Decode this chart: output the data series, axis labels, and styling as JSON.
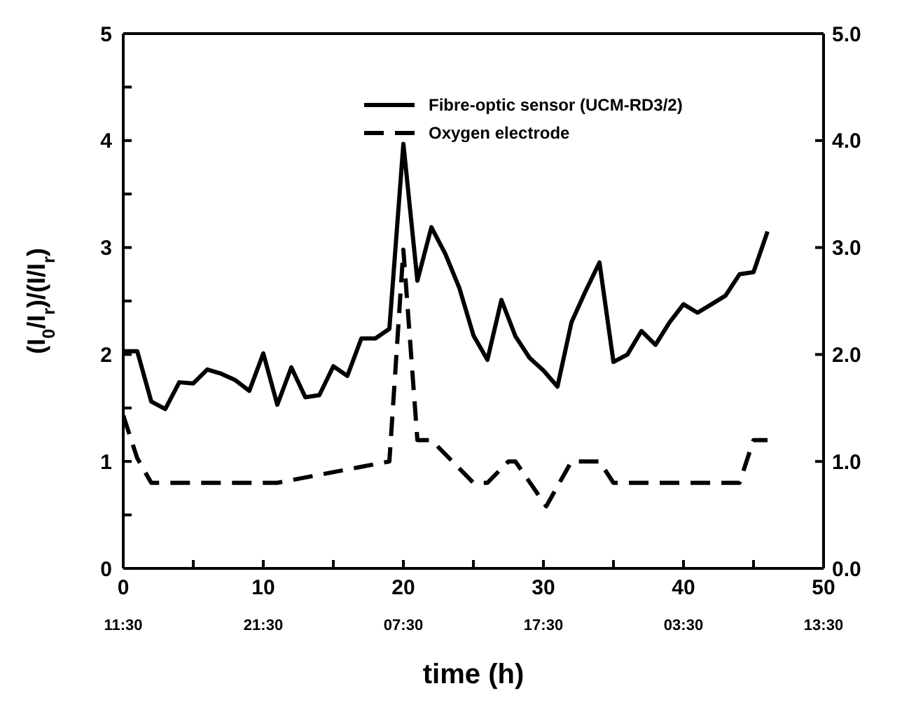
{
  "chart_data": {
    "type": "line",
    "xlabel": "time (h)",
    "ylabel": "(I$_{0}$/I$_{r}$)/(I/I$_{r}$)",
    "xlim": [
      0,
      50
    ],
    "xticks": [
      0,
      {
        "value": 5,
        "label": null
      },
      10,
      {
        "value": 15,
        "label": null
      },
      20,
      {
        "value": 25,
        "label": null
      },
      30,
      {
        "value": 35,
        "label": null
      },
      40,
      {
        "value": 45,
        "label": null
      },
      50
    ],
    "annotations": [
      "11:30",
      "21:30",
      "07:30",
      "17:30",
      "03:30",
      "13:30"
    ],
    "ylim": [
      0,
      5
    ],
    "yticks": [
      0,
      {
        "value": 0.5,
        "label": null
      },
      1,
      {
        "value": 1.5,
        "label": null
      },
      2,
      {
        "value": 2.5,
        "label": null
      },
      3,
      {
        "value": 3.5,
        "label": null
      },
      4,
      {
        "value": 4.5,
        "label": null
      },
      5
    ],
    "y2lim": [
      0,
      5
    ],
    "y2ticks": [
      {
        "value": 0,
        "label": "0.0"
      },
      {
        "value": 1,
        "label": "1.0"
      },
      {
        "value": 2,
        "label": "2.0"
      },
      {
        "value": 3,
        "label": "3.0"
      },
      {
        "value": 4,
        "label": "4.0"
      },
      {
        "value": 5,
        "label": "5.0"
      }
    ],
    "legend": "top",
    "marker": "none",
    "series": [
      {
        "name": "Fibre-optic sensor (UCM-RD3/2)",
        "color": "#000000",
        "line_style": "solid",
        "x": [
          0,
          1,
          2,
          3,
          4,
          5,
          6,
          7,
          8,
          9,
          10,
          11,
          12,
          13,
          14,
          15,
          16,
          17,
          18,
          19,
          20,
          21,
          22,
          23,
          24,
          25,
          26,
          27,
          28,
          29,
          30,
          31,
          32,
          33,
          34,
          35,
          36,
          37,
          38,
          39,
          40,
          41,
          42,
          43,
          44,
          45,
          46
        ],
        "values": [
          2.03,
          2.03,
          1.56,
          1.49,
          1.74,
          1.73,
          1.86,
          1.82,
          1.76,
          1.66,
          2.01,
          1.53,
          1.88,
          1.6,
          1.62,
          1.89,
          1.8,
          2.15,
          2.15,
          2.24,
          3.97,
          2.69,
          3.19,
          2.94,
          2.62,
          2.18,
          1.95,
          2.51,
          2.17,
          1.97,
          1.85,
          1.7,
          2.3,
          2.59,
          2.86,
          1.93,
          2.0,
          2.22,
          2.09,
          2.3,
          2.47,
          2.39,
          2.47,
          2.55,
          2.75,
          2.77,
          3.15
        ]
      },
      {
        "name": "Oxygen electrode",
        "color": "#000000",
        "line_style": "dashed",
        "x": [
          0,
          1,
          2,
          11,
          19,
          20,
          21,
          22,
          25,
          26,
          27.5,
          28,
          30.2,
          32,
          34,
          35,
          44,
          45,
          46
        ],
        "values": [
          1.43,
          1.03,
          0.8,
          0.8,
          1.0,
          2.98,
          1.2,
          1.2,
          0.8,
          0.8,
          1.0,
          1.0,
          0.58,
          1.0,
          1.0,
          0.8,
          0.8,
          1.2,
          1.2
        ]
      }
    ]
  }
}
